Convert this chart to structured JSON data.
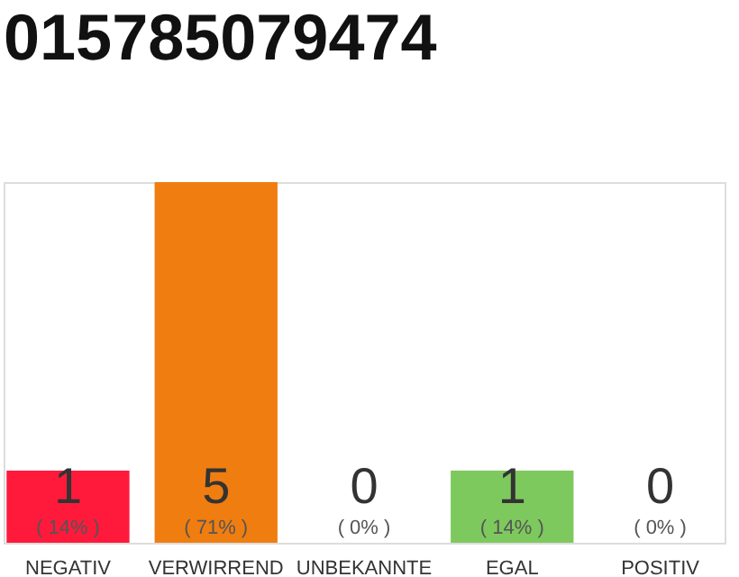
{
  "chart_data": {
    "type": "bar",
    "title": "015785079474",
    "categories": [
      "NEGATIV",
      "VERWIRREND",
      "UNBEKANNTE",
      "EGAL",
      "POSITIV"
    ],
    "values": [
      1,
      5,
      0,
      1,
      0
    ],
    "colors": [
      "#ff1a3c",
      "#f07d0f",
      "#bdbdbd",
      "#7dc95e",
      "#bdbdbd"
    ],
    "data_labels": true,
    "annotations": [
      "( 14% )",
      "( 71% )",
      "( 0% )",
      "( 14% )",
      "( 0% )"
    ],
    "tick_labels": "x",
    "grid": false
  }
}
